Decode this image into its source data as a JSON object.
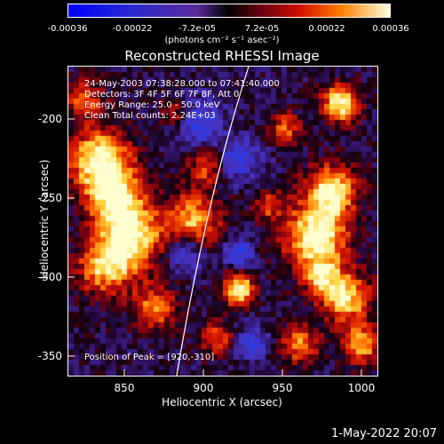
{
  "colorbar": {
    "ticks": [
      "-0.00036",
      "-0.00022",
      "-7.2e-05",
      "7.2e-05",
      "0.00022",
      "0.00036"
    ],
    "unit": "(photons cm⁻² s⁻¹ asec⁻²)"
  },
  "title": "Reconstructed RHESSI Image",
  "info": {
    "time": "24-May-2003 07:38:28.000 to 07:41:40.000",
    "detectors": "Detectors: 3F 4F 5F 6F 7F 8F, Att 0",
    "energy": "Energy Range: 25.0 - 50.0 keV",
    "clean": "Clean     Total counts: 2.24E+03"
  },
  "peak": "Position of Peak = [920,-310]",
  "axes": {
    "xlabel": "Heliocentric X (arcsec)",
    "ylabel": "Heliocentric Y (arcsec)",
    "xticks": [
      "850",
      "900",
      "950",
      "1000"
    ],
    "yticks": [
      "-200",
      "-250",
      "-300",
      "-350"
    ],
    "xrange": [
      818,
      1015
    ],
    "yrange": [
      -165,
      -362
    ]
  },
  "datestamp": "1-May-2022 20:07",
  "colors": {
    "background": "#000000",
    "low": "#2b0d57",
    "high": "#ffffc8"
  }
}
